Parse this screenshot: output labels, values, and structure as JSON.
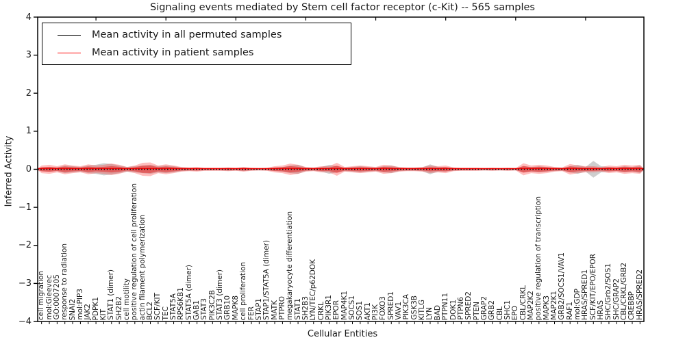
{
  "title": "Signaling events mediated by Stem cell factor receptor (c-Kit) -- 565 samples",
  "legend": {
    "items": [
      {
        "label": "Mean activity in all permuted samples",
        "color": "#000000"
      },
      {
        "label": "Mean activity in patient samples",
        "color": "#ff0000"
      }
    ]
  },
  "axes": {
    "ylabel": "Inferred Activity",
    "xlabel": "Cellular Entities",
    "ytick_labels": [
      "4",
      "3",
      "2",
      "1",
      "0",
      "−1",
      "−2",
      "−3",
      "−4"
    ],
    "ytick_values": [
      4,
      3,
      2,
      1,
      0,
      -1,
      -2,
      -3,
      -4
    ]
  },
  "chart_data": {
    "type": "area",
    "title": "Signaling events mediated by Stem cell factor receptor (c-Kit) -- 565 samples",
    "xlabel": "Cellular Entities",
    "ylabel": "Inferred Activity",
    "ylim": [
      -4,
      4
    ],
    "legend_position": "upper left",
    "grid": false,
    "categories": [
      "cell migration",
      "mol:Gleevec",
      "GO:0007205",
      "response to radiation",
      "SNAI2",
      "mol:PIP3",
      "JAK2",
      "PDPK1",
      "KIT",
      "STAT1 (dimer)",
      "SH2B2",
      "cell motility",
      "positive regulation of cell proliferation",
      "actin filament polymerization",
      "BCL2",
      "SCF/KIT",
      "TEC",
      "STAT5A",
      "RPS6KB1",
      "STAT5A (dimer)",
      "GAB1",
      "STAT3",
      "PIK3C2B",
      "STAT3 (dimer)",
      "GRB10",
      "MAPK8",
      "cell proliferation",
      "FER",
      "STAP1",
      "STAP1/STAT5A (dimer)",
      "MATK",
      "PTPRO",
      "megakaryocyte differentiation",
      "STAT1",
      "SH2B3",
      "LYN/TEC/p62DOK",
      "CRKL",
      "PIK3R1",
      "EPOR",
      "MAP4K1",
      "SOCS1",
      "SOS1",
      "AKT1",
      "PI3K",
      "FOXO3",
      "SPRED1",
      "VAV1",
      "PIK3CA",
      "GSK3B",
      "KITLG",
      "LYN",
      "BAD",
      "PTPN11",
      "DOK1",
      "PTPN6",
      "SPRED2",
      "PTEN",
      "GRAP2",
      "GRB2",
      "CBL",
      "SHC1",
      "EPO",
      "CBL/CRKL",
      "MAP2K2",
      "positive regulation of transcription",
      "MAPK3",
      "MAP2K1",
      "GRB2/SOCS1/VAV1",
      "RAF1",
      "mol:GDP",
      "HRAS/SPRED1",
      "SCF/KIT/EPO/EPOR",
      "HRAS",
      "SHC/Grb2/SOS1",
      "SHC/GRAP2",
      "CBL/CRKL/GRB2",
      "CREBBP",
      "HRAS/SPRED2"
    ],
    "series": [
      {
        "name": "Mean activity in all permuted samples",
        "color": "#000000",
        "line_style": "dotted",
        "mean_value": 0.0,
        "band_amplitudes": [
          0.05,
          0.06,
          0.05,
          0.1,
          0.08,
          0.06,
          0.1,
          0.12,
          0.16,
          0.14,
          0.1,
          0.06,
          0.08,
          0.1,
          0.12,
          0.08,
          0.1,
          0.08,
          0.05,
          0.04,
          0.04,
          0.03,
          0.03,
          0.03,
          0.04,
          0.03,
          0.05,
          0.03,
          0.03,
          0.03,
          0.05,
          0.06,
          0.1,
          0.12,
          0.05,
          0.04,
          0.06,
          0.12,
          0.08,
          0.05,
          0.06,
          0.08,
          0.06,
          0.05,
          0.08,
          0.1,
          0.05,
          0.04,
          0.04,
          0.05,
          0.13,
          0.06,
          0.06,
          0.04,
          0.03,
          0.03,
          0.03,
          0.03,
          0.03,
          0.03,
          0.03,
          0.03,
          0.08,
          0.06,
          0.08,
          0.06,
          0.05,
          0.04,
          0.08,
          0.12,
          0.06,
          0.22,
          0.08,
          0.06,
          0.05,
          0.08,
          0.06,
          0.1
        ]
      },
      {
        "name": "Mean activity in patient samples",
        "color": "#ff0000",
        "line_style": "solid",
        "mean_value": 0.02,
        "band_amplitudes": [
          0.1,
          0.12,
          0.08,
          0.13,
          0.1,
          0.08,
          0.13,
          0.1,
          0.12,
          0.15,
          0.12,
          0.06,
          0.1,
          0.17,
          0.18,
          0.1,
          0.13,
          0.1,
          0.06,
          0.05,
          0.06,
          0.04,
          0.04,
          0.04,
          0.05,
          0.04,
          0.06,
          0.04,
          0.03,
          0.04,
          0.08,
          0.1,
          0.15,
          0.12,
          0.06,
          0.05,
          0.08,
          0.08,
          0.17,
          0.06,
          0.08,
          0.1,
          0.08,
          0.06,
          0.12,
          0.1,
          0.06,
          0.05,
          0.05,
          0.06,
          0.1,
          0.08,
          0.1,
          0.05,
          0.04,
          0.04,
          0.04,
          0.03,
          0.04,
          0.03,
          0.04,
          0.03,
          0.16,
          0.1,
          0.12,
          0.1,
          0.06,
          0.05,
          0.14,
          0.1,
          0.08,
          0.08,
          0.06,
          0.1,
          0.08,
          0.12,
          0.1,
          0.12
        ]
      }
    ]
  }
}
